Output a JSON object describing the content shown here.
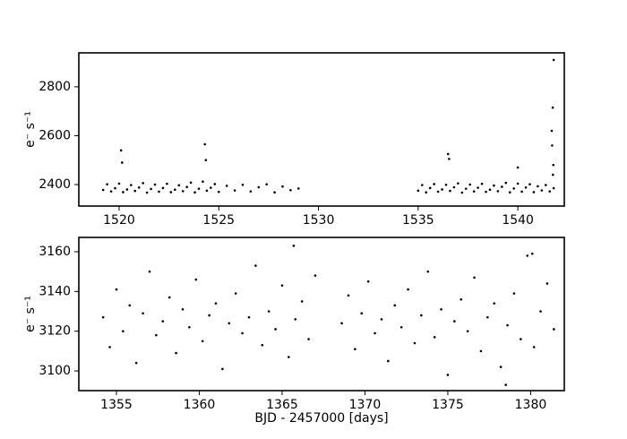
{
  "chart_data": [
    {
      "type": "scatter",
      "ylabel": "e⁻ s⁻¹",
      "color": "#000000",
      "xlim": [
        1517.98,
        1542.33
      ],
      "ylim": [
        2312,
        2939
      ],
      "xticks": [
        1520,
        1525,
        1530,
        1535,
        1540
      ],
      "yticks": [
        2400,
        2600,
        2800
      ],
      "x": [
        1519.2,
        1519.4,
        1519.6,
        1519.8,
        1520.0,
        1520.2,
        1520.4,
        1520.6,
        1520.8,
        1521.0,
        1521.2,
        1521.4,
        1521.6,
        1521.8,
        1522.0,
        1522.2,
        1522.4,
        1522.6,
        1522.8,
        1523.0,
        1523.2,
        1523.4,
        1523.6,
        1523.8,
        1524.0,
        1524.2,
        1524.4,
        1524.6,
        1524.8,
        1525.0,
        1525.4,
        1525.8,
        1526.2,
        1526.6,
        1527.0,
        1527.4,
        1527.8,
        1528.2,
        1528.6,
        1529.0,
        1535.0,
        1535.2,
        1535.4,
        1535.6,
        1535.8,
        1536.0,
        1536.2,
        1536.4,
        1536.6,
        1536.8,
        1537.0,
        1537.2,
        1537.4,
        1537.6,
        1537.8,
        1538.0,
        1538.2,
        1538.4,
        1538.6,
        1538.8,
        1539.0,
        1539.2,
        1539.4,
        1539.6,
        1539.8,
        1540.0,
        1540.2,
        1540.4,
        1540.6,
        1540.8,
        1541.0,
        1541.2,
        1541.4,
        1541.6,
        1541.8,
        1520.1,
        1520.15,
        1524.3,
        1524.35,
        1536.5,
        1536.55,
        1540.0,
        1541.8,
        1541.75,
        1541.7,
        1541.72,
        1541.78,
        1541.76
      ],
      "values": [
        2378,
        2401,
        2372,
        2385,
        2404,
        2369,
        2380,
        2398,
        2374,
        2388,
        2406,
        2367,
        2382,
        2400,
        2371,
        2386,
        2403,
        2369,
        2379,
        2397,
        2373,
        2390,
        2408,
        2368,
        2383,
        2412,
        2375,
        2387,
        2402,
        2370,
        2395,
        2376,
        2399,
        2372,
        2389,
        2401,
        2368,
        2392,
        2377,
        2384,
        2375,
        2398,
        2368,
        2386,
        2402,
        2371,
        2380,
        2399,
        2374,
        2389,
        2405,
        2367,
        2383,
        2400,
        2372,
        2387,
        2403,
        2370,
        2379,
        2396,
        2373,
        2391,
        2407,
        2368,
        2384,
        2404,
        2371,
        2388,
        2401,
        2369,
        2393,
        2376,
        2398,
        2372,
        2385,
        2540,
        2490,
        2565,
        2500,
        2525,
        2505,
        2470,
        2910,
        2715,
        2620,
        2560,
        2480,
        2440
      ]
    },
    {
      "type": "scatter",
      "ylabel": "e⁻ s⁻¹",
      "xlabel": "BJD - 2457000 [days]",
      "color": "#000000",
      "xlim": [
        1352.73,
        1382.03
      ],
      "ylim": [
        3090.1,
        3167.2
      ],
      "xticks": [
        1355,
        1360,
        1365,
        1370,
        1375,
        1380
      ],
      "yticks": [
        3100,
        3120,
        3140,
        3160
      ],
      "x": [
        1354.2,
        1354.6,
        1355.0,
        1355.4,
        1355.8,
        1356.2,
        1356.6,
        1357.0,
        1357.4,
        1357.8,
        1358.2,
        1358.6,
        1359.0,
        1359.4,
        1359.8,
        1360.2,
        1360.6,
        1361.0,
        1361.4,
        1361.8,
        1362.2,
        1362.6,
        1363.0,
        1363.4,
        1363.8,
        1364.2,
        1364.6,
        1365.0,
        1365.4,
        1365.8,
        1366.2,
        1366.6,
        1367.0,
        1368.6,
        1369.0,
        1369.4,
        1369.8,
        1370.2,
        1370.6,
        1371.0,
        1371.4,
        1371.8,
        1372.2,
        1372.6,
        1373.0,
        1373.4,
        1373.8,
        1374.2,
        1374.6,
        1375.0,
        1375.4,
        1375.8,
        1376.2,
        1376.6,
        1377.0,
        1377.4,
        1377.8,
        1378.2,
        1378.6,
        1379.0,
        1379.4,
        1379.8,
        1380.2,
        1380.6,
        1381.0,
        1381.4,
        1365.7,
        1380.1,
        1378.5
      ],
      "values": [
        3127,
        3112,
        3141,
        3120,
        3133,
        3104,
        3129,
        3150,
        3118,
        3125,
        3137,
        3109,
        3131,
        3122,
        3146,
        3115,
        3128,
        3134,
        3101,
        3124,
        3139,
        3119,
        3127,
        3153,
        3113,
        3130,
        3121,
        3143,
        3107,
        3126,
        3135,
        3116,
        3148,
        3124,
        3138,
        3111,
        3129,
        3145,
        3119,
        3126,
        3105,
        3133,
        3122,
        3141,
        3114,
        3128,
        3150,
        3117,
        3131,
        3098,
        3125,
        3136,
        3120,
        3147,
        3110,
        3127,
        3134,
        3102,
        3123,
        3139,
        3116,
        3158,
        3112,
        3130,
        3144,
        3121,
        3163,
        3159,
        3093
      ]
    }
  ]
}
